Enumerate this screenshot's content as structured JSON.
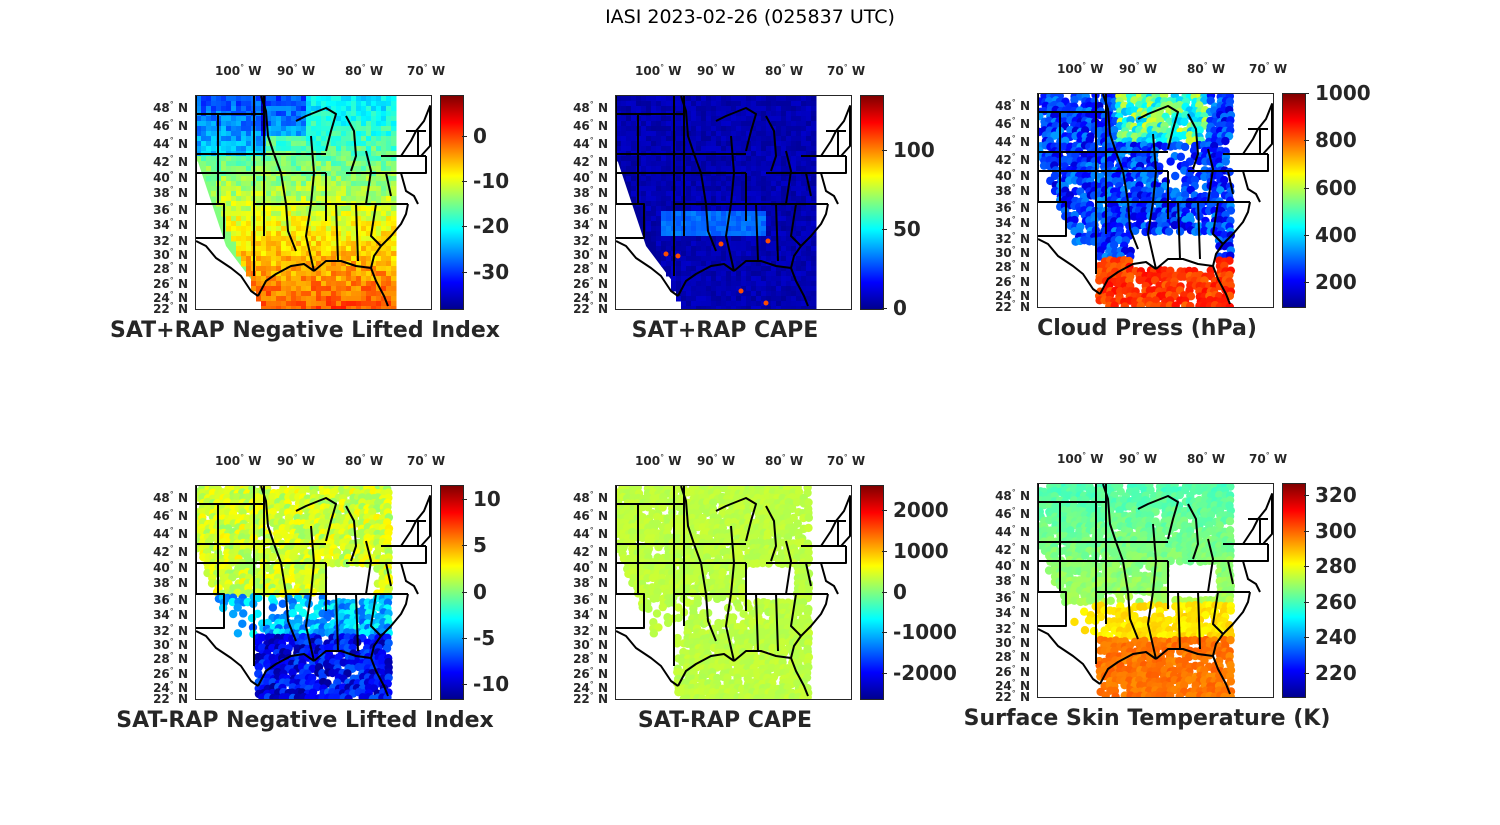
{
  "figure": {
    "title": "IASI 2023-02-26 (025837 UTC)"
  },
  "axes": {
    "lon_labels": [
      "100",
      "90",
      "80",
      "70"
    ],
    "lon_suffix": "W",
    "lat_labels": [
      "48",
      "46",
      "44",
      "42",
      "40",
      "38",
      "36",
      "34",
      "32",
      "30",
      "28",
      "26",
      "24",
      "22"
    ],
    "lat_suffix": "N",
    "degree_symbol": "°"
  },
  "panels": [
    {
      "id": "sat-rap-nli",
      "title": "SAT+RAP Negative Lifted Index",
      "colorbar": {
        "min": -38,
        "max": 9,
        "ticks": [
          "0",
          "-10",
          "-20",
          "-30"
        ],
        "tick_values": [
          0,
          -10,
          -20,
          -30
        ]
      },
      "colormap": "jet",
      "coverage": "full-swath",
      "dominant_values": "north: -20 to -30 (blue/cyan), south: -5 to 3 (yellow/orange)"
    },
    {
      "id": "sat-rap-cape",
      "title": "SAT+RAP CAPE",
      "colorbar": {
        "min": 0,
        "max": 135,
        "ticks": [
          "100",
          "50",
          "0"
        ],
        "tick_values": [
          100,
          50,
          0
        ]
      },
      "colormap": "jet",
      "coverage": "full-swath",
      "dominant_values": "mostly 0-10 (dark blue), isolated higher values near Gulf coast"
    },
    {
      "id": "cloud-press",
      "title": "Cloud Press (hPa)",
      "colorbar": {
        "min": 100,
        "max": 1000,
        "ticks": [
          "1000",
          "800",
          "600",
          "400",
          "200"
        ],
        "tick_values": [
          1000,
          800,
          600,
          400,
          200
        ]
      },
      "colormap": "jet",
      "coverage": "cloudy-pixels",
      "dominant_values": "inland 150-300 (blue), Gulf 800-950 (orange/red)"
    },
    {
      "id": "sat-minus-rap-nli",
      "title": "SAT-RAP Negative Lifted Index",
      "colorbar": {
        "min": -11.5,
        "max": 11.5,
        "ticks": [
          "10",
          "5",
          "0",
          "-5",
          "-10"
        ],
        "tick_values": [
          10,
          5,
          0,
          -5,
          -10
        ]
      },
      "colormap": "jet",
      "coverage": "clear-pixels",
      "dominant_values": "north 1-4 (yellow), Gulf -5 to -11 (blue)"
    },
    {
      "id": "sat-minus-rap-cape",
      "title": "SAT-RAP CAPE",
      "colorbar": {
        "min": -2600,
        "max": 2600,
        "ticks": [
          "2000",
          "1000",
          "0",
          "-1000",
          "-2000"
        ],
        "tick_values": [
          2000,
          1000,
          0,
          -1000,
          -2000
        ]
      },
      "colormap": "jet",
      "coverage": "clear-pixels",
      "dominant_values": "near 0 (light green)"
    },
    {
      "id": "skin-temp",
      "title": "Surface Skin Temperature (K)",
      "colorbar": {
        "min": 207,
        "max": 327,
        "ticks": [
          "320",
          "300",
          "280",
          "260",
          "240",
          "220"
        ],
        "tick_values": [
          320,
          300,
          280,
          260,
          240,
          220
        ]
      },
      "colormap": "jet",
      "coverage": "clear-pixels",
      "dominant_values": "north 255-270 (cyan/green), south 290-300 (orange)"
    }
  ]
}
